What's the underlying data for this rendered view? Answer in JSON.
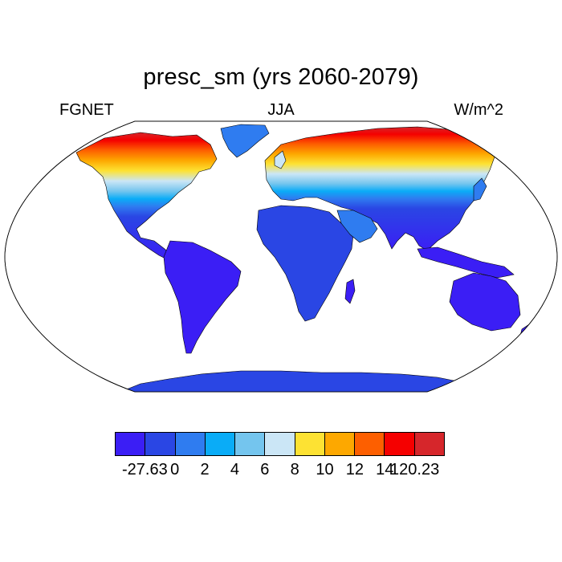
{
  "title": "presc_sm (yrs 2060-2079)",
  "subtitle_left": "FGNET",
  "subtitle_center": "JJA",
  "subtitle_right": "W/m^2",
  "colorbar": {
    "colors": [
      "#3b1ef5",
      "#2a46e4",
      "#2f7cf0",
      "#0aacf7",
      "#74c5ee",
      "#cbe6f6",
      "#fde233",
      "#fda800",
      "#fd5f00",
      "#f50000",
      "#d6262b"
    ],
    "labels": [
      "-27.63",
      "0",
      "2",
      "4",
      "6",
      "8",
      "10",
      "12",
      "14",
      "120.23"
    ]
  }
}
